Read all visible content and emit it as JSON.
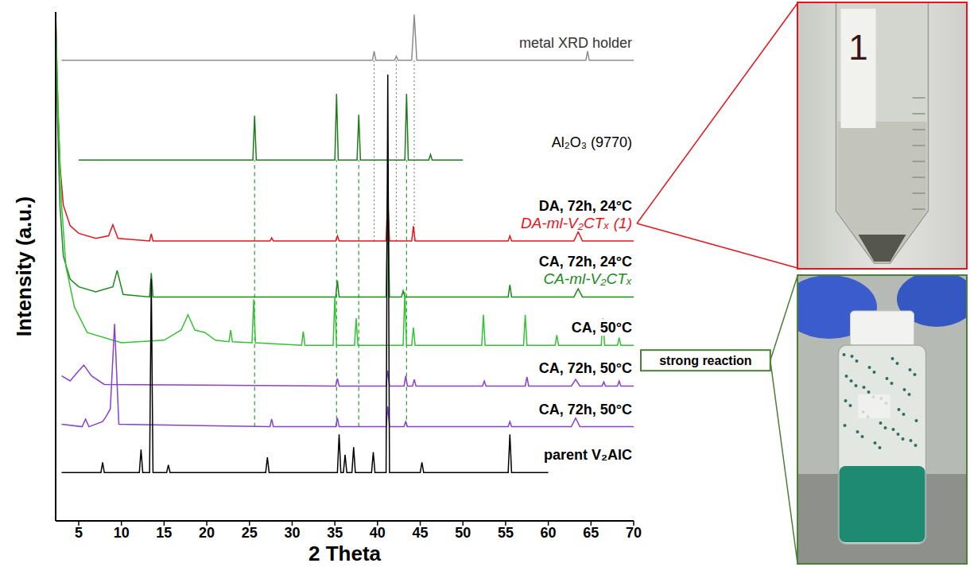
{
  "chart_data": {
    "type": "line",
    "x_label": "2 Theta",
    "y_label": "Intensity (a.u.)",
    "xlim": [
      2.3,
      70
    ],
    "xticks": [
      5,
      10,
      15,
      20,
      25,
      30,
      35,
      40,
      45,
      50,
      55,
      60,
      65,
      70
    ],
    "ylim": [
      0,
      100
    ],
    "yticks": [],
    "tick_labels": "x",
    "grid": false,
    "series": [
      {
        "name": "metal XRD holder",
        "color": "#8c8c8c",
        "x": [
          3,
          39.4,
          39.6,
          39.8,
          42.0,
          42.2,
          42.4,
          44.0,
          44.3,
          44.6,
          64.4,
          64.6,
          64.8,
          70
        ],
        "values": [
          90.5,
          90.5,
          92.3,
          90.5,
          90.5,
          91.3,
          90.5,
          90.5,
          99.5,
          90.5,
          90.5,
          92.3,
          90.5,
          90.5
        ]
      },
      {
        "name": "Al₂O₃ (9770)",
        "color": "#1e7b1e",
        "x": [
          5,
          25.4,
          25.6,
          25.8,
          35.0,
          35.2,
          35.4,
          37.6,
          37.8,
          38.0,
          43.2,
          43.4,
          43.6,
          46.0,
          46.2,
          46.4,
          50
        ],
        "values": [
          70.9,
          70.9,
          79.6,
          70.9,
          70.9,
          83.9,
          70.9,
          70.9,
          79.8,
          70.9,
          70.9,
          83.9,
          70.9,
          70.9,
          72.0,
          70.9,
          70.9
        ]
      },
      {
        "name": "DA, 72h, 24°C",
        "sample": "DA-ml-V₂CTₓ (1)",
        "color": "#e8141c",
        "photo": true,
        "photo_label": "1",
        "x": [
          2.3,
          2.5,
          2.8,
          3.2,
          4,
          5,
          7,
          8.5,
          9.0,
          9.6,
          13.3,
          13.5,
          13.7,
          27.4,
          27.6,
          27.8,
          35.1,
          35.3,
          35.5,
          41.0,
          41.2,
          41.4,
          44.0,
          44.2,
          44.4,
          55.3,
          55.5,
          55.7,
          63.0,
          63.5,
          64.0,
          70
        ],
        "values": [
          100,
          85,
          70,
          62,
          58,
          56.5,
          55.5,
          56,
          58.2,
          55.5,
          55,
          56.4,
          55,
          55,
          55.6,
          55,
          55,
          56,
          55,
          55,
          64,
          55,
          55,
          57.9,
          55,
          55,
          56,
          55,
          55,
          56.8,
          55,
          55
        ]
      },
      {
        "name": "CA, 72h, 24°C",
        "sample": "CA-ml-V₂CTₓ",
        "color": "#1a8a1a",
        "x": [
          2.3,
          2.5,
          2.8,
          3.2,
          4,
          5,
          7,
          9.0,
          9.5,
          10.2,
          13.3,
          13.5,
          13.7,
          35.1,
          35.3,
          35.5,
          41.0,
          41.2,
          41.4,
          42.8,
          43.0,
          43.2,
          55.3,
          55.5,
          55.7,
          63.0,
          63.5,
          64.0,
          70
        ],
        "values": [
          100,
          80,
          62,
          52,
          47.5,
          46,
          45,
          46,
          49.2,
          44.5,
          44,
          48.7,
          44,
          44,
          47.2,
          44,
          44,
          66,
          44,
          44,
          45.2,
          44,
          44,
          46.4,
          44,
          44,
          45.6,
          44,
          44
        ]
      },
      {
        "name": "CA, 50°C",
        "color": "#33c233",
        "annotation": "strong reaction",
        "photo": true,
        "x": [
          2.3,
          2.6,
          3,
          3.5,
          4.5,
          6,
          10,
          15,
          17.0,
          17.8,
          18.6,
          19.8,
          21,
          22.6,
          22.8,
          23.0,
          25.3,
          25.5,
          25.7,
          31.1,
          31.3,
          31.5,
          34.8,
          35.0,
          35.2,
          37.3,
          37.5,
          37.7,
          43.0,
          43.2,
          43.4,
          44.0,
          44.2,
          44.4,
          52.2,
          52.4,
          52.6,
          57.1,
          57.3,
          57.5,
          60.8,
          61.0,
          61.2,
          66.2,
          66.4,
          66.6,
          68.1,
          68.3,
          68.5,
          70
        ],
        "values": [
          100,
          80,
          62,
          50,
          42,
          37,
          35,
          35.5,
          37.5,
          40.5,
          37.5,
          37.0,
          35.5,
          35.2,
          37.5,
          35.2,
          35,
          43.5,
          35,
          34.5,
          37.2,
          34.5,
          34.5,
          44,
          34.5,
          34.5,
          39.8,
          34.5,
          34.5,
          45,
          34.5,
          34.5,
          38,
          34.5,
          34.5,
          40.5,
          34.5,
          34.5,
          40.5,
          34.5,
          34.5,
          36.5,
          34.5,
          34.5,
          39.8,
          34.5,
          34.5,
          36,
          34.5,
          34.5
        ]
      },
      {
        "name": "CA, 72h, 50°C",
        "color": "#8a3fd1",
        "x": [
          3,
          4,
          5.0,
          5.6,
          6.5,
          8,
          35.1,
          35.3,
          35.5,
          41.0,
          41.2,
          41.4,
          43.1,
          43.3,
          43.5,
          44.1,
          44.3,
          44.5,
          52.3,
          52.5,
          52.7,
          57.3,
          57.5,
          57.7,
          62.7,
          63.2,
          63.7,
          66.3,
          66.5,
          66.7,
          68.1,
          68.3,
          68.5,
          70
        ],
        "values": [
          28.5,
          27.5,
          29.5,
          30.6,
          28.5,
          26.8,
          26.5,
          28.0,
          26.5,
          26.5,
          29.5,
          26.5,
          26.5,
          28.5,
          26.5,
          26.5,
          27.8,
          26.5,
          26.5,
          27.5,
          26.5,
          26.5,
          28.3,
          26.5,
          26.5,
          27.8,
          26.5,
          26.5,
          27.3,
          26.5,
          26.5,
          27.5,
          26.5,
          26.5
        ]
      },
      {
        "name": "CA, 72h, 50°C",
        "color": "#8a3fd1",
        "x": [
          3,
          5.4,
          5.8,
          6.2,
          7.8,
          8.2,
          8.7,
          9.2,
          9.7,
          27.4,
          27.6,
          27.8,
          35.1,
          35.3,
          35.5,
          41.0,
          41.2,
          41.4,
          43.1,
          43.3,
          43.5,
          55.3,
          55.5,
          55.7,
          62.7,
          63.2,
          63.7,
          70
        ],
        "values": [
          19,
          18.5,
          20.0,
          18.5,
          19.5,
          20.5,
          22,
          38.7,
          19,
          18.5,
          20,
          18.5,
          18.5,
          20.2,
          18.5,
          18.5,
          22.5,
          18.5,
          18.5,
          19.5,
          18.5,
          18.5,
          19.5,
          18.5,
          18.5,
          20.2,
          18.5,
          18.5
        ]
      },
      {
        "name": "parent V₂AlC",
        "color": "#000000",
        "x": [
          3,
          7.6,
          7.8,
          8.0,
          12.1,
          12.3,
          12.5,
          13.3,
          13.5,
          13.7,
          15.3,
          15.5,
          15.7,
          26.9,
          27.1,
          27.3,
          35.3,
          35.5,
          35.7,
          36.0,
          36.2,
          36.4,
          37.0,
          37.2,
          37.4,
          39.3,
          39.5,
          39.7,
          41.0,
          41.2,
          41.4,
          45.0,
          45.2,
          45.4,
          55.3,
          55.5,
          55.7,
          60
        ],
        "values": [
          9.5,
          9.5,
          11.5,
          9.5,
          9.5,
          14,
          9.5,
          9.5,
          47.5,
          9.5,
          9.5,
          11,
          9.5,
          9.5,
          12.5,
          9.5,
          9.5,
          17,
          9.5,
          9.5,
          13,
          9.5,
          9.5,
          14.5,
          9.5,
          9.5,
          13.5,
          9.5,
          9.5,
          87.7,
          9.5,
          9.5,
          11.5,
          9.5,
          9.5,
          17,
          9.5,
          9.5
        ]
      }
    ],
    "guides": [
      {
        "x": 39.6,
        "from": 55,
        "to": 90.5,
        "color": "#888888",
        "line_style": "dotted"
      },
      {
        "x": 42.2,
        "from": 55,
        "to": 90.5,
        "color": "#888888",
        "line_style": "dotted"
      },
      {
        "x": 44.3,
        "from": 55,
        "to": 90.5,
        "color": "#888888",
        "line_style": "dotted"
      },
      {
        "x": 25.6,
        "from": 18.5,
        "to": 70.9,
        "color": "#2a9d2a",
        "line_style": "dashed"
      },
      {
        "x": 35.2,
        "from": 18.5,
        "to": 70.9,
        "color": "#2a9d2a",
        "line_style": "dashed"
      },
      {
        "x": 37.8,
        "from": 18.5,
        "to": 70.9,
        "color": "#2a9d2a",
        "line_style": "dashed"
      },
      {
        "x": 43.4,
        "from": 18.5,
        "to": 70.9,
        "color": "#2a9d2a",
        "line_style": "dashed"
      }
    ]
  }
}
